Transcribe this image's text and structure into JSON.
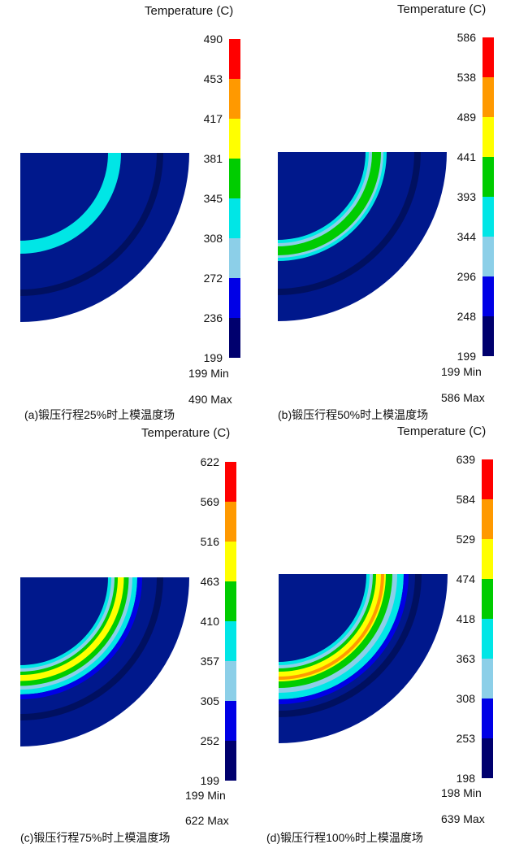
{
  "colormap": [
    "#00006e",
    "#0000e6",
    "#8ccfe8",
    "#00e6e6",
    "#00cc00",
    "#ffff00",
    "#ff9900",
    "#ff0000"
  ],
  "panels": [
    {
      "id": "a",
      "title": "Temperature (C)",
      "ticks": [
        "490",
        "453",
        "417",
        "381",
        "345",
        "308",
        "272",
        "236",
        "199"
      ],
      "min_label": "199  Min",
      "max_label": "490  Max",
      "caption": "(a)锻压行程25%时上模温度场",
      "hot_intensity": 0.25
    },
    {
      "id": "b",
      "title": "Temperature (C)",
      "ticks": [
        "586",
        "538",
        "489",
        "441",
        "393",
        "344",
        "296",
        "248",
        "199"
      ],
      "min_label": "199  Min",
      "max_label": "586  Max",
      "caption": "(b)锻压行程50%时上模温度场",
      "hot_intensity": 0.5
    },
    {
      "id": "c",
      "title": "Temperature (C)",
      "ticks": [
        "622",
        "569",
        "516",
        "463",
        "410",
        "357",
        "305",
        "252",
        "199"
      ],
      "min_label": "199  Min",
      "max_label": "622  Max",
      "caption": "(c)锻压行程75%时上模温度场",
      "hot_intensity": 0.75
    },
    {
      "id": "d",
      "title": "Temperature (C)",
      "ticks": [
        "639",
        "584",
        "529",
        "474",
        "418",
        "363",
        "308",
        "253",
        "198"
      ],
      "min_label": "198  Min",
      "max_label": "639  Max",
      "caption": "(d)锻压行程100%时上模温度场",
      "hot_intensity": 1.0
    }
  ]
}
